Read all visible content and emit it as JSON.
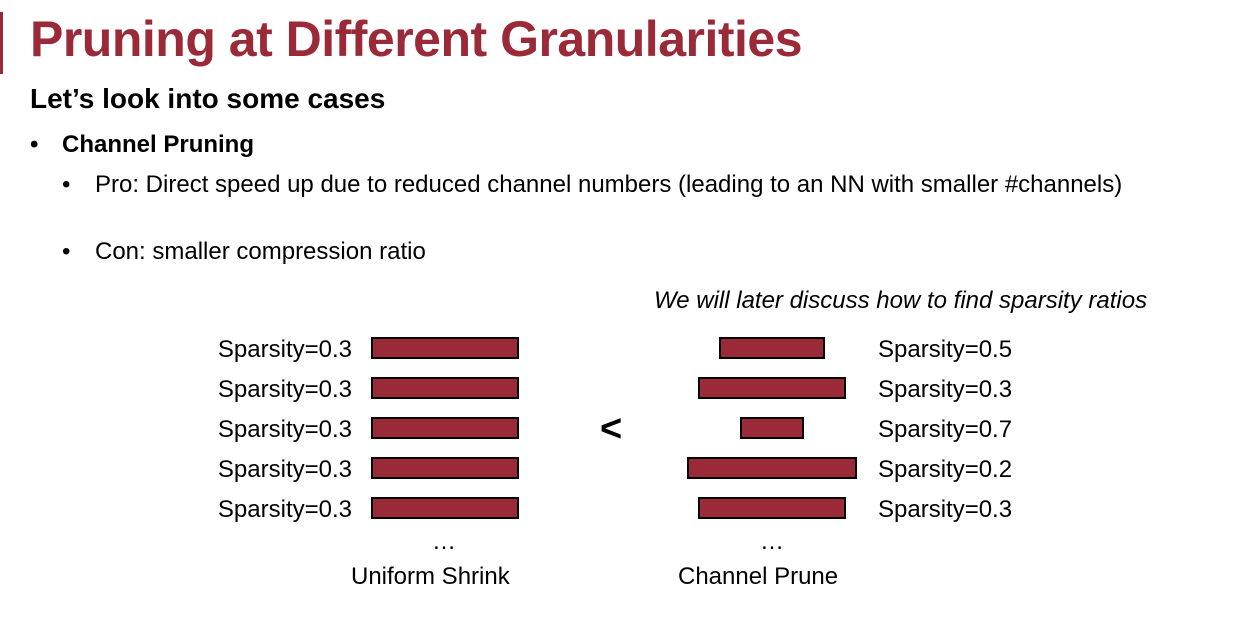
{
  "slide": {
    "title": "Pruning at Different Granularities",
    "subtitle": "Let’s look into some cases",
    "bullets": {
      "main": "Channel Pruning",
      "pro": "Pro: Direct speed up due to reduced channel numbers (leading to an NN with smaller #channels)",
      "con": "Con: smaller compression ratio"
    },
    "bullet_glyph": "•",
    "note": "We will later discuss how to find sparsity ratios",
    "comparison_symbol": "<",
    "uniform": {
      "caption": "Uniform Shrink",
      "ellipsis": "…",
      "layers": [
        {
          "label": "Sparsity=0.3",
          "sparsity": 0.3
        },
        {
          "label": "Sparsity=0.3",
          "sparsity": 0.3
        },
        {
          "label": "Sparsity=0.3",
          "sparsity": 0.3
        },
        {
          "label": "Sparsity=0.3",
          "sparsity": 0.3
        },
        {
          "label": "Sparsity=0.3",
          "sparsity": 0.3
        }
      ]
    },
    "channel": {
      "caption": "Channel Prune",
      "ellipsis": "…",
      "layers": [
        {
          "label": "Sparsity=0.5",
          "sparsity": 0.5
        },
        {
          "label": "Sparsity=0.3",
          "sparsity": 0.3
        },
        {
          "label": "Sparsity=0.7",
          "sparsity": 0.7
        },
        {
          "label": "Sparsity=0.2",
          "sparsity": 0.2
        },
        {
          "label": "Sparsity=0.3",
          "sparsity": 0.3
        }
      ]
    },
    "colors": {
      "accent": "#9b2a38"
    }
  }
}
